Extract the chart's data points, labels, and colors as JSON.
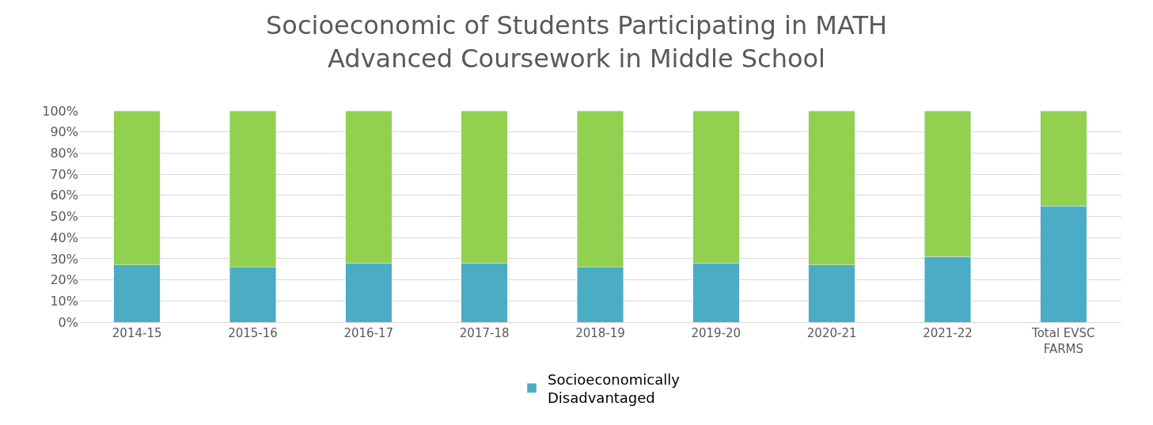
{
  "chart_data": {
    "type": "bar",
    "stacked": true,
    "title": "Socioeconomic of Students Participating in MATH\nAdvanced Coursework in Middle School",
    "categories": [
      "2014-15",
      "2015-16",
      "2016-17",
      "2017-18",
      "2018-19",
      "2019-20",
      "2020-21",
      "2021-22",
      "Total EVSC\nFARMS"
    ],
    "series": [
      {
        "name": "Socioeconomically\nDisadvantaged",
        "color": "#4bacc6",
        "values": [
          27,
          26,
          28,
          28,
          26,
          28,
          27,
          31,
          55
        ]
      },
      {
        "color": "#92d050",
        "values": [
          73,
          74,
          72,
          72,
          74,
          72,
          73,
          69,
          45
        ]
      }
    ],
    "ylim": [
      0,
      100
    ],
    "yticks": [
      {
        "value": 0,
        "label": "0%"
      },
      {
        "value": 10,
        "label": "10%"
      },
      {
        "value": 20,
        "label": "20%"
      },
      {
        "value": 30,
        "label": "30%"
      },
      {
        "value": 40,
        "label": "40%"
      },
      {
        "value": 50,
        "label": "50%"
      },
      {
        "value": 60,
        "label": "60%"
      },
      {
        "value": 70,
        "label": "70%"
      },
      {
        "value": 80,
        "label": "80%"
      },
      {
        "value": 90,
        "label": "90%"
      },
      {
        "value": 100,
        "label": "100%"
      }
    ],
    "grid": "y",
    "legend": "bottom"
  }
}
